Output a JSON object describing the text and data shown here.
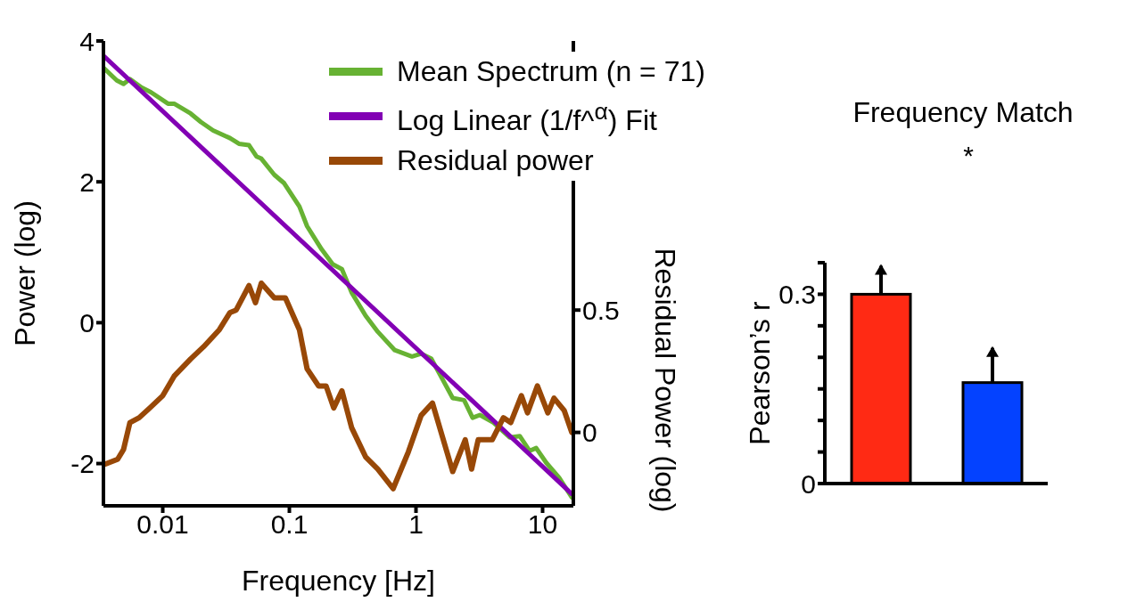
{
  "chart_data": [
    {
      "type": "line",
      "xlabel": "Frequency [Hz]",
      "ylabel": "Power (log)",
      "y2label": "Residual Power (log)",
      "log": "x",
      "xlim": [
        0.0034,
        17.5
      ],
      "xticks": [
        0.01,
        0.1,
        1,
        10
      ],
      "ylim": [
        -2.6,
        4
      ],
      "yticks": [
        -2,
        0,
        2,
        4
      ],
      "y2lim": [
        -0.3,
        1.6
      ],
      "y2ticks": [
        0,
        0.5
      ],
      "grid": false,
      "legend": "top right",
      "marker": "none",
      "line_style": "solid",
      "series": [
        {
          "name": "Mean Spectrum (n = 71)",
          "color": "#67b233",
          "x": [
            0.0034,
            0.00433,
            0.0049,
            0.0055,
            0.0068,
            0.0081,
            0.011,
            0.0123,
            0.0166,
            0.02,
            0.025,
            0.034,
            0.04,
            0.048,
            0.055,
            0.06,
            0.076,
            0.091,
            0.12,
            0.138,
            0.18,
            0.22,
            0.26,
            0.31,
            0.4,
            0.5,
            0.68,
            0.93,
            1.1,
            1.32,
            1.55,
            1.95,
            2.4,
            2.8,
            3.2,
            4.1,
            5.5,
            6.6,
            7.9,
            8.9,
            10.7,
            13.5,
            17
          ],
          "values": [
            3.62,
            3.44,
            3.39,
            3.46,
            3.34,
            3.27,
            3.11,
            3.11,
            2.97,
            2.85,
            2.73,
            2.62,
            2.54,
            2.52,
            2.36,
            2.33,
            2.1,
            1.98,
            1.65,
            1.37,
            1.04,
            0.83,
            0.76,
            0.43,
            0.1,
            -0.13,
            -0.39,
            -0.48,
            -0.44,
            -0.51,
            -0.74,
            -1.07,
            -1.1,
            -1.35,
            -1.31,
            -1.42,
            -1.63,
            -1.61,
            -1.82,
            -1.78,
            -1.99,
            -2.2,
            -2.48
          ]
        },
        {
          "name": "Log Linear (1/f^$^{α}$) Fit",
          "color": "#8200b4",
          "x": [
            0.0034,
            17
          ],
          "values": [
            3.79,
            -2.43
          ]
        },
        {
          "name": "Residual power",
          "color": "#984807",
          "axis": "y2",
          "x": [
            0.0035,
            0.0044,
            0.0049,
            0.0055,
            0.0065,
            0.0079,
            0.01,
            0.0123,
            0.0166,
            0.021,
            0.028,
            0.034,
            0.038,
            0.048,
            0.054,
            0.06,
            0.076,
            0.093,
            0.12,
            0.138,
            0.17,
            0.195,
            0.224,
            0.26,
            0.31,
            0.4,
            0.5,
            0.66,
            0.87,
            1.1,
            1.35,
            1.95,
            2.45,
            2.75,
            3.1,
            4,
            4.9,
            5.6,
            6.8,
            7.6,
            9.1,
            11,
            12.3,
            14.8,
            17
          ],
          "values": [
            -0.13,
            -0.11,
            -0.07,
            0.04,
            0.06,
            0.1,
            0.15,
            0.23,
            0.3,
            0.35,
            0.42,
            0.49,
            0.5,
            0.6,
            0.53,
            0.61,
            0.55,
            0.55,
            0.42,
            0.26,
            0.19,
            0.19,
            0.1,
            0.17,
            0.02,
            -0.1,
            -0.15,
            -0.23,
            -0.08,
            0.07,
            0.12,
            -0.16,
            -0.03,
            -0.15,
            -0.03,
            -0.03,
            0.06,
            0.04,
            0.15,
            0.08,
            0.19,
            0.08,
            0.14,
            0.09,
            0
          ]
        }
      ]
    },
    {
      "type": "bar",
      "title": "Frequency Match",
      "ylabel": "Pearson’s r",
      "categories": [
        null,
        null
      ],
      "values": [
        0.3,
        0.16
      ],
      "colors": [
        "#ff2a14",
        "#0442ff"
      ],
      "errors": [
        [
          0.3,
          0.345
        ],
        [
          0.16,
          0.215
        ]
      ],
      "ylim": [
        0,
        0.35
      ],
      "yticks": [
        0,
        {
          "value": 0.05,
          "label": null
        },
        {
          "value": 0.1,
          "label": null
        },
        {
          "value": 0.15,
          "label": null
        },
        {
          "value": 0.2,
          "label": null
        },
        {
          "value": 0.25,
          "label": null
        },
        0.3,
        {
          "value": 0.35,
          "label": null
        }
      ],
      "annotations": [
        "*"
      ],
      "grid": false
    }
  ]
}
